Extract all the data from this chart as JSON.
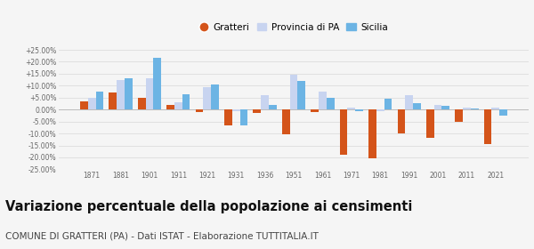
{
  "years": [
    1871,
    1881,
    1901,
    1911,
    1921,
    1931,
    1936,
    1951,
    1961,
    1971,
    1981,
    1991,
    2001,
    2011,
    2021
  ],
  "gratteri": [
    3.5,
    7.0,
    5.0,
    1.8,
    -1.0,
    -6.5,
    -1.5,
    -10.5,
    -1.0,
    -19.0,
    -20.5,
    -10.0,
    -12.0,
    -5.0,
    -14.5
  ],
  "provincia_pa": [
    5.0,
    12.5,
    13.0,
    3.0,
    9.5,
    -0.5,
    6.0,
    14.5,
    7.5,
    1.0,
    -0.5,
    6.0,
    2.0,
    1.0,
    1.0
  ],
  "sicilia": [
    7.5,
    13.0,
    21.5,
    6.5,
    10.5,
    -6.5,
    2.0,
    12.0,
    5.0,
    -0.5,
    4.5,
    2.5,
    1.5,
    0.5,
    -2.5
  ],
  "bar_color_gratteri": "#d4541a",
  "bar_color_provincia": "#c8d4f0",
  "bar_color_sicilia": "#6cb4e4",
  "title": "Variazione percentuale della popolazione ai censimenti",
  "subtitle": "COMUNE DI GRATTERI (PA) - Dati ISTAT - Elaborazione TUTTITALIA.IT",
  "ylim": [
    -25,
    25
  ],
  "yticks": [
    -25,
    -20,
    -15,
    -10,
    -5,
    0,
    5,
    10,
    15,
    20,
    25
  ],
  "ytick_labels": [
    "-25.00%",
    "-20.00%",
    "-15.00%",
    "-10.00%",
    "-5.00%",
    "0.00%",
    "+5.00%",
    "+10.00%",
    "+15.00%",
    "+20.00%",
    "+25.00%"
  ],
  "legend_labels": [
    "Gratteri",
    "Provincia di PA",
    "Sicilia"
  ],
  "background_color": "#f5f5f5",
  "title_fontsize": 10.5,
  "subtitle_fontsize": 7.5
}
